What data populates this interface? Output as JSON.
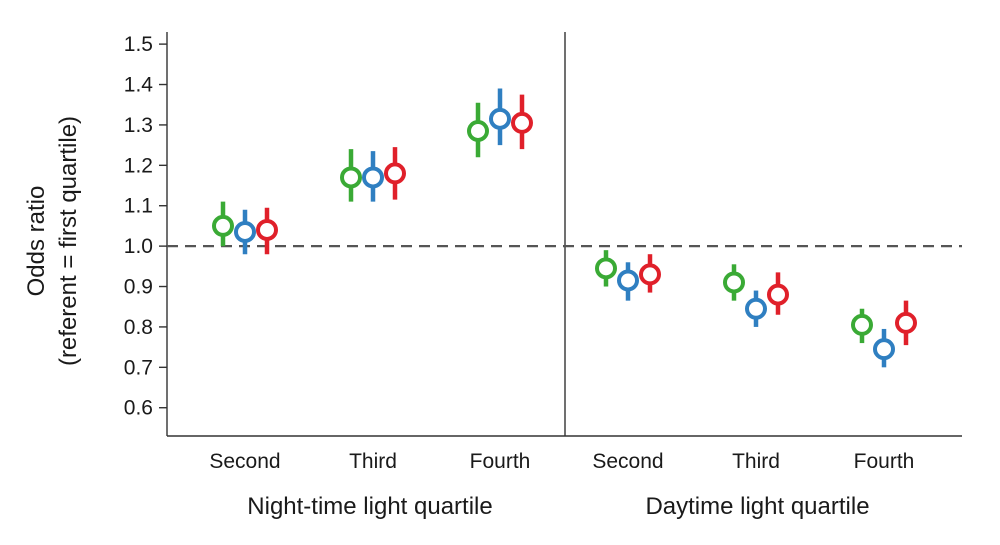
{
  "chart_data": {
    "type": "scatter",
    "subtype": "point-with-error-bars",
    "ylabel_line1": "Odds ratio",
    "ylabel_line2": "(referent = first quartile)",
    "ylim": [
      0.53,
      1.53
    ],
    "yticks": [
      {
        "value": 0.6,
        "label": "0.6"
      },
      {
        "value": 0.7,
        "label": "0.7"
      },
      {
        "value": 0.8,
        "label": "0.8"
      },
      {
        "value": 0.9,
        "label": "0.9"
      },
      {
        "value": 1.0,
        "label": "1.0"
      },
      {
        "value": 1.1,
        "label": "1.1"
      },
      {
        "value": 1.2,
        "label": "1.2"
      },
      {
        "value": 1.3,
        "label": "1.3"
      },
      {
        "value": 1.4,
        "label": "1.4"
      },
      {
        "value": 1.5,
        "label": "1.5"
      }
    ],
    "reference_line": 1.0,
    "grid": false,
    "legend": "none",
    "series_colors": [
      "#3aaa35",
      "#2f7fc1",
      "#e0202a"
    ],
    "panels": [
      {
        "group_label": "Night-time light quartile",
        "categories": [
          "Second",
          "Third",
          "Fourth"
        ],
        "series": [
          {
            "color": "#3aaa35",
            "points": [
              {
                "value": 1.05,
                "low": 1.0,
                "high": 1.11
              },
              {
                "value": 1.17,
                "low": 1.11,
                "high": 1.24
              },
              {
                "value": 1.285,
                "low": 1.22,
                "high": 1.355
              }
            ]
          },
          {
            "color": "#2f7fc1",
            "points": [
              {
                "value": 1.035,
                "low": 0.98,
                "high": 1.09
              },
              {
                "value": 1.17,
                "low": 1.11,
                "high": 1.235
              },
              {
                "value": 1.315,
                "low": 1.25,
                "high": 1.39
              }
            ]
          },
          {
            "color": "#e0202a",
            "points": [
              {
                "value": 1.04,
                "low": 0.98,
                "high": 1.095
              },
              {
                "value": 1.18,
                "low": 1.115,
                "high": 1.245
              },
              {
                "value": 1.305,
                "low": 1.24,
                "high": 1.375
              }
            ]
          }
        ]
      },
      {
        "group_label": "Daytime light quartile",
        "categories": [
          "Second",
          "Third",
          "Fourth"
        ],
        "series": [
          {
            "color": "#3aaa35",
            "points": [
              {
                "value": 0.945,
                "low": 0.9,
                "high": 0.99
              },
              {
                "value": 0.91,
                "low": 0.865,
                "high": 0.955
              },
              {
                "value": 0.805,
                "low": 0.76,
                "high": 0.845
              }
            ]
          },
          {
            "color": "#2f7fc1",
            "points": [
              {
                "value": 0.915,
                "low": 0.865,
                "high": 0.96
              },
              {
                "value": 0.845,
                "low": 0.8,
                "high": 0.89
              },
              {
                "value": 0.745,
                "low": 0.7,
                "high": 0.795
              }
            ]
          },
          {
            "color": "#e0202a",
            "points": [
              {
                "value": 0.93,
                "low": 0.885,
                "high": 0.98
              },
              {
                "value": 0.88,
                "low": 0.83,
                "high": 0.935
              },
              {
                "value": 0.81,
                "low": 0.755,
                "high": 0.865
              }
            ]
          }
        ]
      }
    ]
  }
}
